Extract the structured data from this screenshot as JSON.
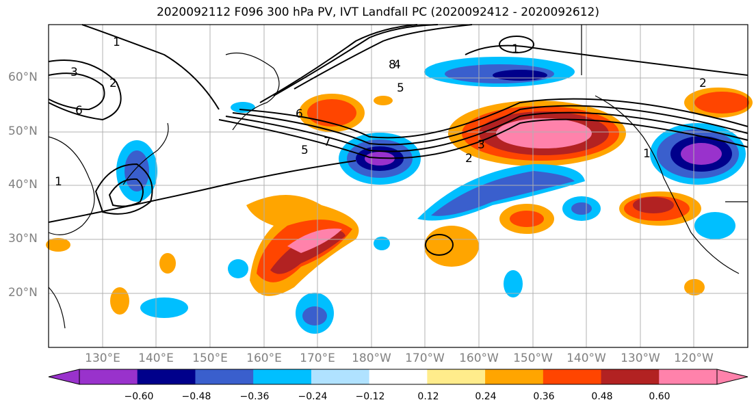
{
  "title": "2020092112 F096 300 hPa PV, IVT Landfall PC (2020092412 - 2020092612)",
  "map": {
    "lat_labels": [
      "60°N",
      "50°N",
      "40°N",
      "30°N",
      "20°N"
    ],
    "lon_labels": [
      "130°E",
      "140°E",
      "150°E",
      "160°E",
      "170°E",
      "180°W",
      "170°W",
      "160°W",
      "150°W",
      "140°W",
      "130°W",
      "120°W"
    ],
    "contour_labels": [
      "1",
      "2",
      "3",
      "4",
      "5",
      "6",
      "7",
      "8",
      "1",
      "2",
      "3",
      "1",
      "2",
      "6",
      "5",
      "1"
    ]
  },
  "colorbar": {
    "ticks": [
      "−0.60",
      "−0.48",
      "−0.36",
      "−0.24",
      "−0.12",
      "0.12",
      "0.24",
      "0.36",
      "0.48",
      "0.60"
    ],
    "colors": [
      "#9932CC",
      "#00008B",
      "#3A5FCD",
      "#00BFFF",
      "#B0E2FF",
      "#FFFFFF",
      "#FFEC8B",
      "#FFA500",
      "#FF4500",
      "#B22222",
      "#FF82AB"
    ]
  }
}
